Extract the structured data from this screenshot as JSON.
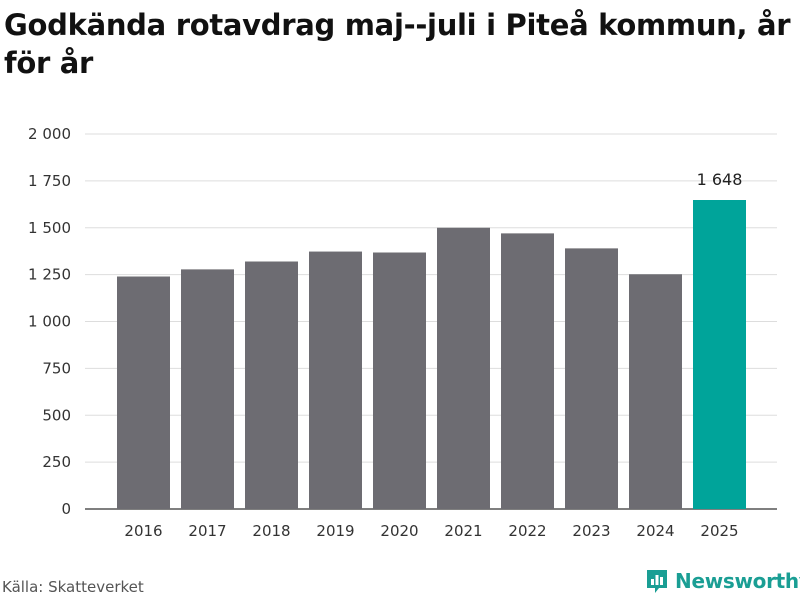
{
  "chart_data": {
    "type": "bar",
    "title": "Godkända rotavdrag maj--juli i Piteå kommun, år för år",
    "categories": [
      "2016",
      "2017",
      "2018",
      "2019",
      "2020",
      "2021",
      "2022",
      "2023",
      "2024",
      "2025"
    ],
    "values": [
      1240,
      1278,
      1320,
      1373,
      1368,
      1500,
      1470,
      1390,
      1252,
      1648
    ],
    "ylim": [
      0,
      2000
    ],
    "yticks": [
      0,
      250,
      500,
      750,
      1000,
      1250,
      1500,
      1750,
      2000
    ],
    "ytick_labels": [
      "0",
      "250",
      "500",
      "750",
      "1 000",
      "1 250",
      "1 500",
      "1 750",
      "2 000"
    ],
    "highlight_index": 9,
    "data_labels": [
      {
        "index": 9,
        "text": "1 648"
      }
    ],
    "grid": true,
    "colors": {
      "bar": "#6d6c72",
      "highlight": "#00a49a",
      "grid": "#dddddd"
    }
  },
  "source": "Källa: Skatteverket",
  "brand": {
    "name": "Newsworthy",
    "icon": "bar-chart-logo-icon",
    "color": "#1a9e94"
  }
}
